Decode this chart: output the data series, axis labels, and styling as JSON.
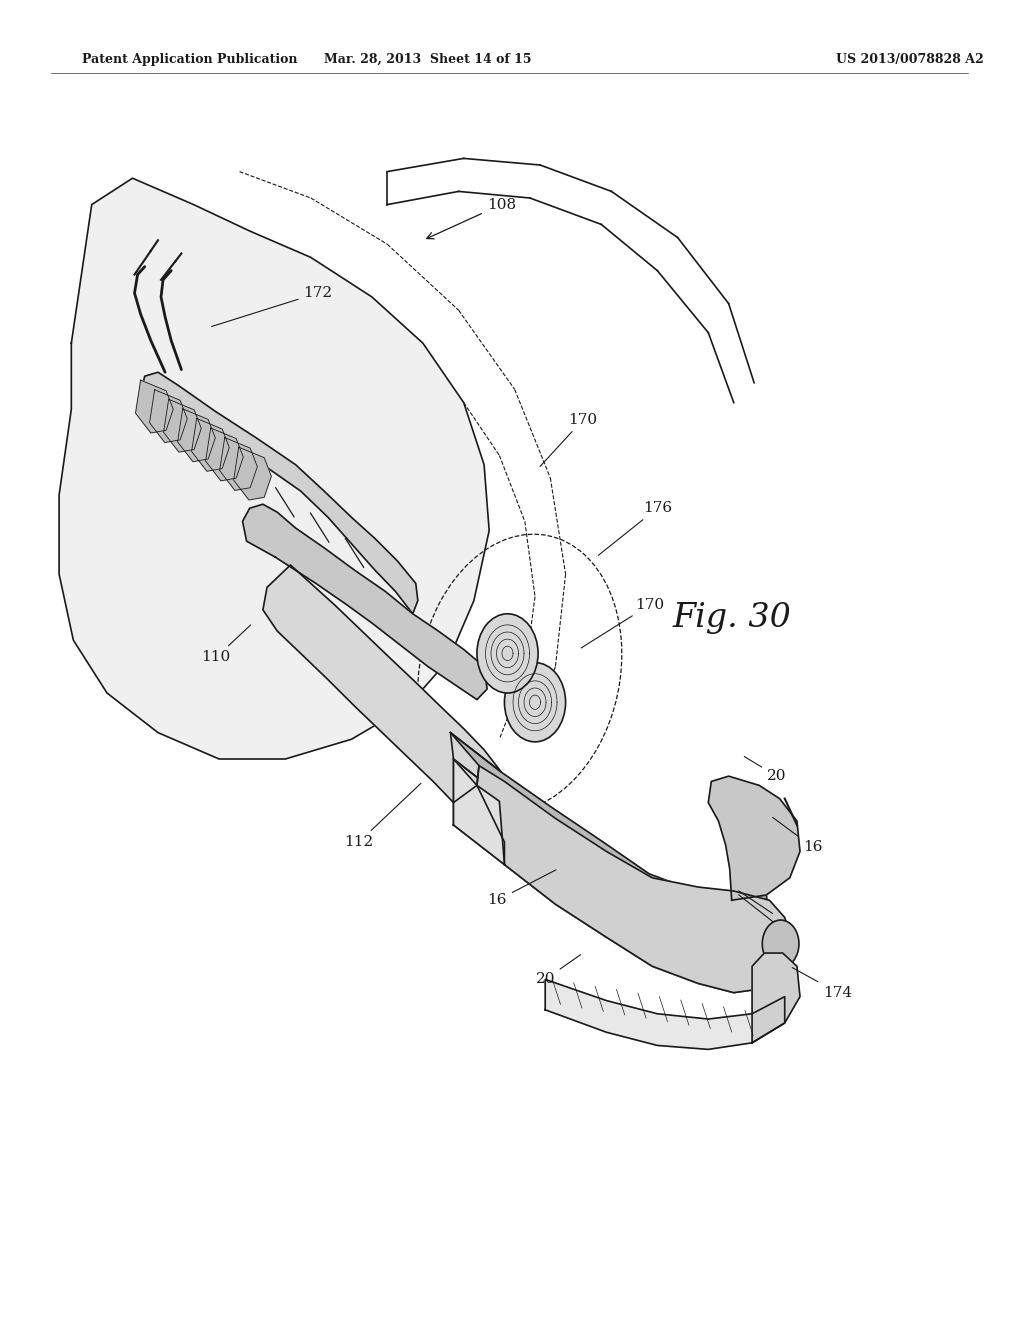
{
  "background_color": "#ffffff",
  "header_left": "Patent Application Publication",
  "header_center": "Mar. 28, 2013  Sheet 14 of 15",
  "header_right": "US 2013/0078828 A2",
  "figure_label": "Fig. 30",
  "line_color": "#1a1a1a"
}
